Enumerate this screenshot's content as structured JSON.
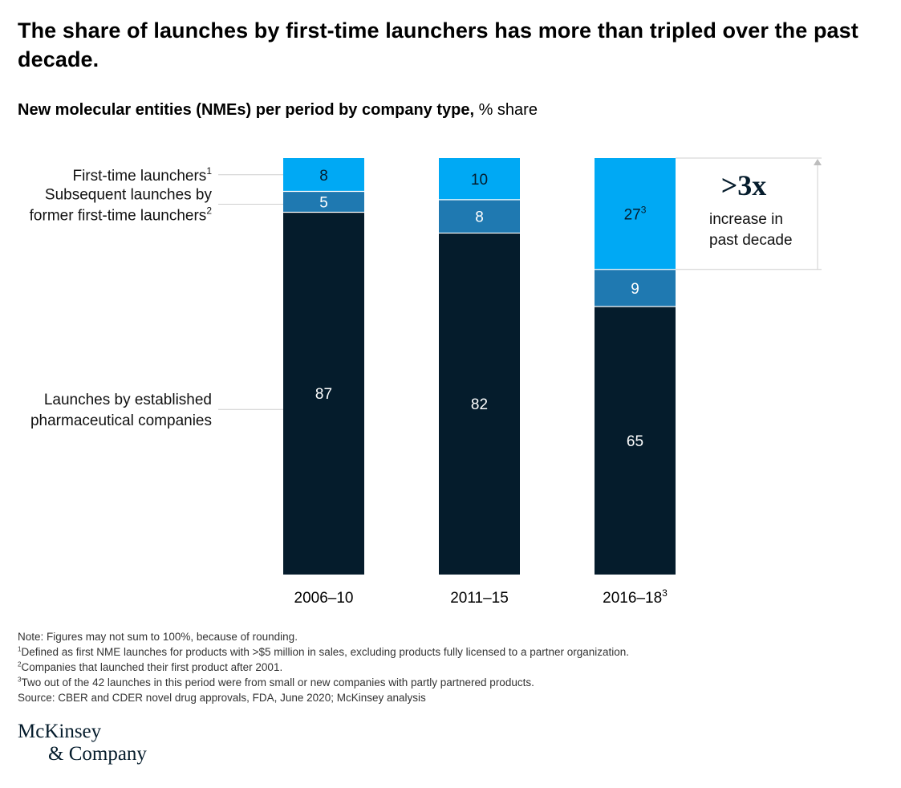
{
  "title": "The share of launches by first-time launchers has more than tripled over the past decade.",
  "subtitle": {
    "bold": "New molecular entities (NMEs) per period by company type,",
    "normal": " % share"
  },
  "chart_data": {
    "type": "bar",
    "stacked": true,
    "categories": [
      "2006–10",
      "2011–15",
      "2016–18"
    ],
    "category_sups": [
      "",
      "",
      "3"
    ],
    "series": [
      {
        "name": "Launches by established pharmaceutical companies",
        "values": [
          87,
          82,
          65
        ],
        "color": "#051c2c"
      },
      {
        "name": "Subsequent launches by former first-time launchers",
        "values": [
          5,
          8,
          9
        ],
        "color": "#1f79b1"
      },
      {
        "name": "First-time launchers",
        "values": [
          8,
          10,
          27
        ],
        "color": "#00a9f4"
      }
    ],
    "value_sups": {
      "first_time": [
        "",
        "",
        "3"
      ]
    },
    "legend": [
      {
        "lines": [
          "First-time launchers"
        ],
        "sup": "1"
      },
      {
        "lines": [
          "Subsequent launches by",
          "former first-time launchers"
        ],
        "sup": "2"
      },
      {
        "lines": [
          "Launches by established",
          "pharmaceutical companies"
        ],
        "sup": ""
      }
    ],
    "annotation": {
      "big": ">3x",
      "lines": [
        "increase in",
        "past decade"
      ]
    },
    "ylim": [
      0,
      100
    ]
  },
  "notes": {
    "note": "Note: Figures may not sum to 100%, because of rounding.",
    "footnotes": [
      {
        "sup": "1",
        "text": "Defined as first NME launches for products with >$5 million in sales, excluding products fully licensed to a partner organization."
      },
      {
        "sup": "2",
        "text": "Companies that launched their first product after 2001."
      },
      {
        "sup": "3",
        "text": "Two out of the 42 launches in this period were from small or new companies with partly partnered products."
      }
    ],
    "source": "Source: CBER and CDER novel drug approvals, FDA, June 2020; McKinsey analysis"
  },
  "logo": {
    "line1": "McKinsey",
    "line2": "& Company"
  },
  "colors": {
    "text_light": "#ffffff",
    "text_dark": "#051c2c",
    "leader": "#cfcfcf"
  }
}
